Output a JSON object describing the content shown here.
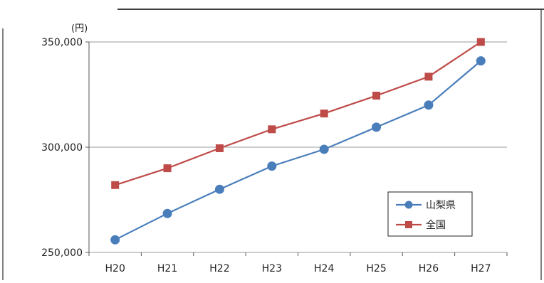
{
  "chart_data": {
    "type": "line",
    "title": "",
    "unit_label": "(円)",
    "categories": [
      "H20",
      "H21",
      "H22",
      "H23",
      "H24",
      "H25",
      "H26",
      "H27"
    ],
    "series": [
      {
        "name": "山梨県",
        "color": "#4a7ebb",
        "marker": "circle",
        "values": [
          256000,
          268500,
          280000,
          291000,
          299000,
          309500,
          320000,
          341000
        ]
      },
      {
        "name": "全国",
        "color": "#be4b48",
        "marker": "square",
        "values": [
          282000,
          290000,
          299500,
          308500,
          316000,
          324500,
          333500,
          350000
        ]
      }
    ],
    "yticks": [
      "250,000",
      "300,000",
      "350,000"
    ],
    "ylim": [
      250000,
      350000
    ],
    "grid": true,
    "legend_position": "bottom-right"
  }
}
